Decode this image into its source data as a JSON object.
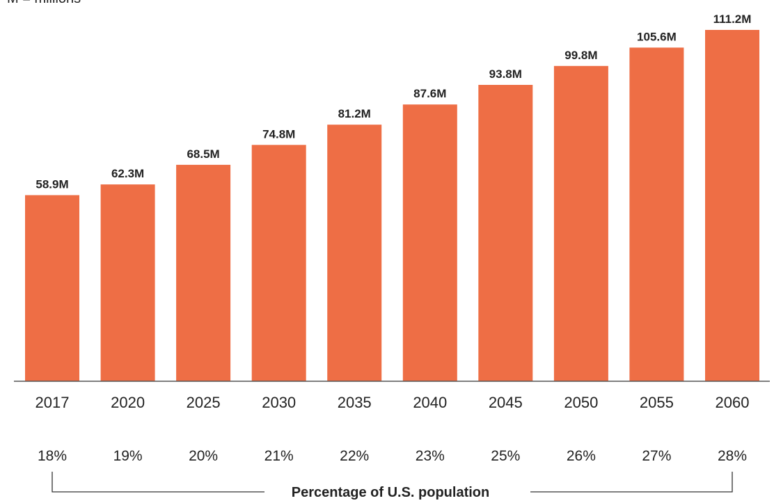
{
  "note": "M = millions",
  "bracket_label": "Percentage of U.S. population",
  "colors": {
    "bar": "#EE6E45",
    "axis": "#555555",
    "text": "#222222",
    "bracket": "#333333"
  },
  "chart_data": {
    "type": "bar",
    "categories": [
      "2017",
      "2020",
      "2025",
      "2030",
      "2035",
      "2040",
      "2045",
      "2050",
      "2055",
      "2060"
    ],
    "values": [
      58.9,
      62.3,
      68.5,
      74.8,
      81.2,
      87.6,
      93.8,
      99.8,
      105.6,
      111.2
    ],
    "value_labels": [
      "58.9M",
      "62.3M",
      "68.5M",
      "74.8M",
      "81.2M",
      "87.6M",
      "93.8M",
      "99.8M",
      "105.6M",
      "111.2M"
    ],
    "percentages": [
      "18%",
      "19%",
      "20%",
      "21%",
      "22%",
      "23%",
      "25%",
      "26%",
      "27%",
      "28%"
    ],
    "xlabel": "",
    "ylabel": "",
    "ylim": [
      0,
      111.2
    ],
    "grid": false,
    "legend": "none"
  }
}
